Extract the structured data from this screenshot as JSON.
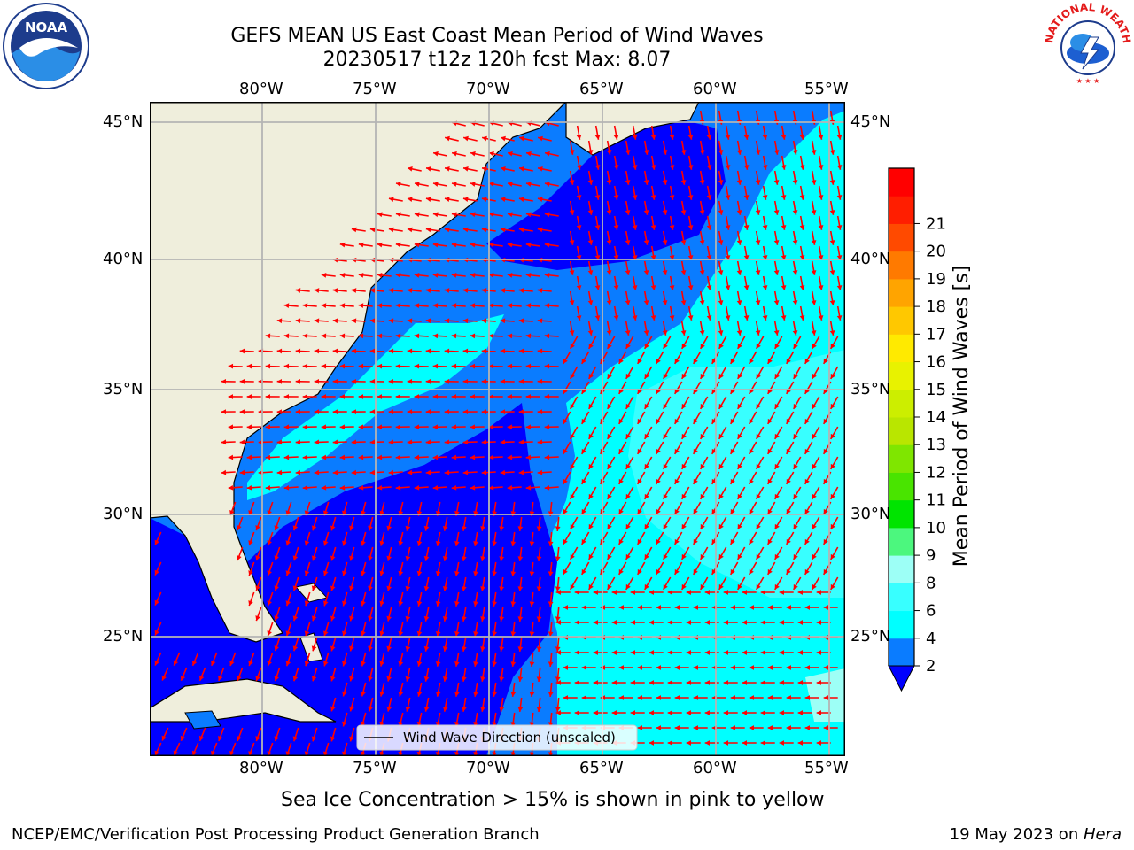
{
  "header": {
    "title_line1": "GEFS MEAN US East Coast Mean Period of Wind Waves",
    "title_line2": "20230517 t12z 120h fcst   Max: 8.07"
  },
  "logos": {
    "left": {
      "text": "NOAA",
      "icon": "noaa-logo"
    },
    "right": {
      "text": "NATIONAL WEATHER SERVICE",
      "icon": "nws-logo"
    }
  },
  "map": {
    "lon_labels": [
      "80°W",
      "75°W",
      "70°W",
      "65°W",
      "60°W",
      "55°W"
    ],
    "lat_labels": [
      "45°N",
      "40°N",
      "35°N",
      "30°N",
      "25°N"
    ],
    "legend_label": "Wind Wave Direction (unscaled)",
    "arrow_color": "#ff0000",
    "land_color": "#efeedc",
    "shading": [
      {
        "range": "2-4",
        "color": "#0000ff"
      },
      {
        "range": "4-6",
        "color": "#0a7cff"
      },
      {
        "range": "6-8",
        "color": "#00ffff"
      },
      {
        "range": "8-9",
        "color": "#7ffff6"
      }
    ]
  },
  "colorbar": {
    "label": "Mean Period of Wind Waves [s]",
    "ticks": [
      "2",
      "4",
      "6",
      "8",
      "9",
      "10",
      "11",
      "12",
      "13",
      "14",
      "15",
      "16",
      "17",
      "18",
      "19",
      "20",
      "21"
    ],
    "colors": [
      "#0a7cff",
      "#00ffff",
      "#38ffff",
      "#9dfff6",
      "#4cf77e",
      "#00e400",
      "#49e400",
      "#7fe600",
      "#b9e600",
      "#ccee00",
      "#e8f200",
      "#ffea00",
      "#ffc800",
      "#ffa400",
      "#ff7a00",
      "#ff4a00",
      "#ff1e00",
      "#ff0000"
    ],
    "extend_color": "#0000ff"
  },
  "footer": {
    "caption": "Sea Ice Concentration > 15% is shown in pink to yellow",
    "left": "NCEP/EMC/Verification Post Processing Product Generation Branch",
    "right_prefix": "19 May 2023 on ",
    "right_host": "Hera"
  }
}
